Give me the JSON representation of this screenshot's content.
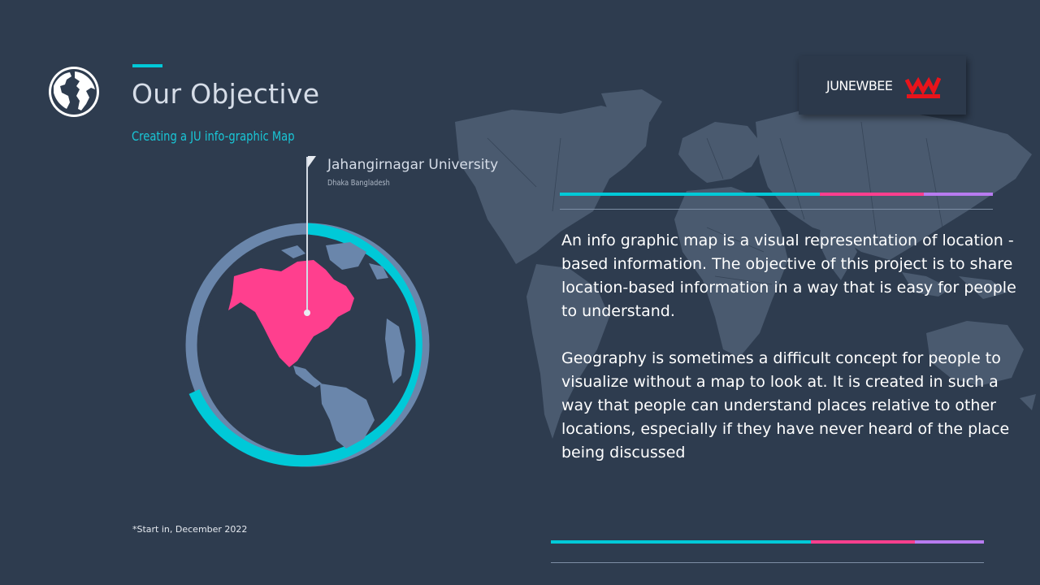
{
  "header": {
    "title": "Our Objective",
    "subtitle": "Creating a JU info-graphic Map"
  },
  "logo": {
    "text": "JUNEWBEE",
    "mark_color": "#e8141b"
  },
  "location": {
    "name": "Jahangirnagar University",
    "detail": "Dhaka Bangladesh"
  },
  "body": {
    "paragraph_1": "An info graphic map is a visual representation of location -based information. The objective of this project is to share location-based information in a way that is easy for people to understand.",
    "paragraph_2": "Geography is sometimes a difficult concept for people to visualize without a map to look at. It is created in such a way that people can understand places relative to other locations, especially if they have never heard of the place being discussed"
  },
  "footnote": "*Start in, December 2022",
  "colors": {
    "background": "#2e3c4f",
    "accent_cyan": "#00c9d8",
    "accent_pink": "#ff3f8e",
    "accent_purple": "#b77bf0",
    "ring_blue": "#6a86ab",
    "north_america": "#ff3f8e"
  },
  "icons": [
    "globe-icon",
    "flag-pin-icon",
    "world-map-graphic"
  ]
}
